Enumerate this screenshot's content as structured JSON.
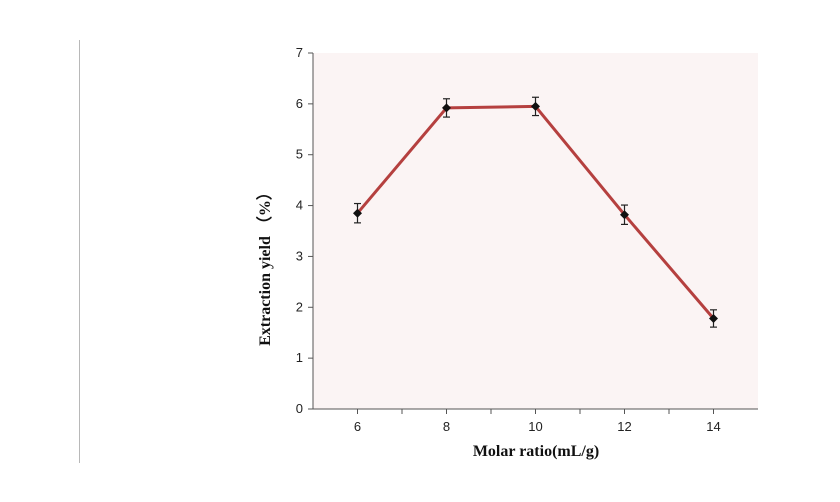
{
  "chart_data": {
    "type": "line",
    "title": "",
    "xlabel": "Molar ratio(mL/g)",
    "ylabel": "Extraction  yield （%）",
    "x": [
      6,
      8,
      10,
      12,
      14
    ],
    "x_tick_labels": [
      "6",
      "8",
      "10",
      "12",
      "14"
    ],
    "xlim": [
      5,
      15
    ],
    "ylim": [
      0,
      7
    ],
    "y_ticks": [
      0,
      1,
      2,
      3,
      4,
      5,
      6,
      7
    ],
    "y_tick_labels": [
      "0",
      "1",
      "2",
      "3",
      "4",
      "5",
      "6",
      "7"
    ],
    "grid": false,
    "legend": "none",
    "series": [
      {
        "values": [
          3.85,
          5.92,
          5.95,
          3.82,
          1.78
        ],
        "errors": [
          0.19,
          0.18,
          0.18,
          0.19,
          0.17
        ],
        "line_color": "#b5403f",
        "marker": "diamond",
        "marker_color": "#111111"
      }
    ],
    "plot_background": "#fbf4f4"
  }
}
